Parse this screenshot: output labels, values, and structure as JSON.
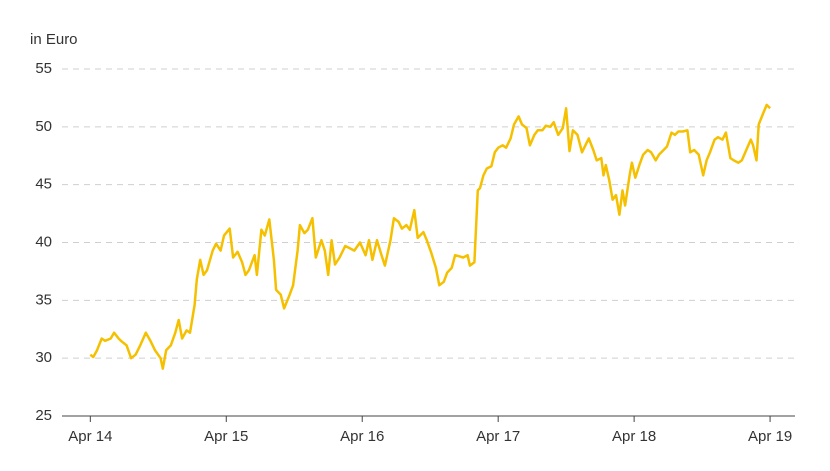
{
  "chart_data": {
    "type": "line",
    "y_label": "in Euro",
    "x": [
      0,
      0.26,
      0.6,
      1.0,
      1.3,
      1.8,
      2.1,
      2.5,
      2.7,
      3.2,
      3.6,
      4.0,
      4.4,
      4.9,
      5.3,
      5.7,
      6.2,
      6.4,
      6.7,
      7.1,
      7.5,
      7.8,
      8.1,
      8.5,
      8.8,
      9.2,
      9.4,
      9.7,
      10.0,
      10.3,
      10.8,
      11.1,
      11.5,
      11.8,
      12.3,
      12.6,
      13.0,
      13.4,
      13.7,
      14.0,
      14.5,
      14.7,
      15.1,
      15.4,
      15.8,
      16.2,
      16.4,
      16.8,
      17.1,
      17.6,
      17.9,
      18.3,
      18.5,
      18.9,
      19.2,
      19.6,
      19.9,
      20.4,
      20.7,
      21.0,
      21.3,
      21.6,
      22.0,
      22.5,
      22.9,
      23.3,
      23.8,
      24.3,
      24.6,
      24.9,
      25.3,
      25.7,
      26.0,
      26.5,
      26.8,
      27.2,
      27.5,
      27.9,
      28.2,
      28.6,
      28.9,
      29.4,
      29.7,
      30.1,
      30.5,
      30.8,
      31.2,
      31.5,
      31.9,
      32.2,
      32.6,
      32.9,
      33.3,
      33.5,
      33.9,
      34.2,
      34.4,
      34.7,
      35.0,
      35.4,
      35.7,
      36.0,
      36.4,
      36.7,
      37.1,
      37.4,
      37.8,
      38.1,
      38.5,
      38.8,
      39.2,
      39.5,
      39.9,
      40.2,
      40.6,
      40.9,
      41.3,
      41.7,
      42.0,
      42.3,
      42.6,
      43.0,
      43.4,
      43.7,
      44.0,
      44.4,
      44.7,
      45.1,
      45.3,
      45.5,
      45.8,
      46.1,
      46.4,
      46.7,
      46.97,
      47.2,
      47.6,
      47.8,
      48.1,
      48.5,
      48.8,
      49.2,
      49.5,
      49.9,
      50.2,
      50.6,
      50.9,
      51.3,
      51.6,
      51.9,
      52.3,
      52.7,
      52.95,
      53.3,
      53.7,
      54.1,
      54.4,
      54.7,
      55.1,
      55.4,
      55.8,
      56.1,
      56.5,
      56.8,
      57.2,
      57.5,
      57.9,
      58.3,
      58.5,
      58.8,
      59.0,
      59.4,
      59.7,
      60.0
    ],
    "series": [
      {
        "color": "#f5c000",
        "values": [
          30.3,
          30.1,
          30.7,
          31.7,
          31.5,
          31.7,
          32.2,
          31.7,
          31.5,
          31.1,
          30.0,
          30.3,
          31.1,
          32.2,
          31.5,
          30.7,
          30.0,
          29.1,
          30.7,
          31.1,
          32.2,
          33.3,
          31.7,
          32.4,
          32.2,
          34.6,
          36.8,
          38.5,
          37.2,
          37.6,
          39.3,
          39.9,
          39.3,
          40.6,
          41.2,
          38.7,
          39.2,
          38.3,
          37.2,
          37.6,
          38.9,
          37.2,
          41.1,
          40.6,
          42.0,
          38.5,
          35.9,
          35.5,
          34.3,
          35.5,
          36.3,
          39.3,
          41.5,
          40.8,
          41.1,
          42.1,
          38.7,
          40.2,
          39.3,
          37.2,
          40.2,
          38.1,
          38.7,
          39.7,
          39.5,
          39.3,
          40.0,
          38.9,
          40.2,
          38.5,
          40.2,
          38.9,
          38.0,
          40.2,
          42.1,
          41.8,
          41.2,
          41.5,
          41.1,
          42.8,
          40.4,
          40.9,
          40.2,
          39.1,
          37.8,
          36.3,
          36.6,
          37.4,
          37.8,
          38.9,
          38.8,
          38.7,
          38.9,
          38.0,
          38.3,
          44.5,
          44.7,
          45.8,
          46.4,
          46.6,
          47.8,
          48.2,
          48.4,
          48.2,
          49.0,
          50.2,
          50.9,
          50.2,
          49.9,
          48.4,
          49.3,
          49.7,
          49.7,
          50.1,
          50.0,
          50.4,
          49.3,
          49.9,
          51.6,
          47.9,
          49.7,
          49.3,
          47.8,
          48.4,
          49.0,
          48.0,
          47.1,
          47.3,
          45.8,
          46.7,
          45.4,
          43.7,
          44.1,
          42.4,
          44.5,
          43.2,
          45.8,
          46.9,
          45.6,
          46.8,
          47.6,
          48.0,
          47.8,
          47.1,
          47.6,
          48.0,
          48.3,
          49.5,
          49.3,
          49.6,
          49.6,
          49.7,
          47.8,
          48.0,
          47.6,
          45.8,
          47.1,
          47.8,
          48.9,
          49.1,
          48.9,
          49.5,
          47.3,
          47.1,
          46.9,
          47.1,
          48.0,
          48.9,
          48.4,
          47.1,
          50.2,
          51.2,
          51.9,
          51.6
        ]
      }
    ],
    "xlim": [
      -2.5,
      62.2
    ],
    "xticks": [
      {
        "value": 0,
        "label": "Apr 14"
      },
      {
        "value": 12,
        "label": "Apr 15"
      },
      {
        "value": 24,
        "label": "Apr 16"
      },
      {
        "value": 36,
        "label": "Apr 17"
      },
      {
        "value": 48,
        "label": "Apr 18"
      },
      {
        "value": 60,
        "label": "Apr 19"
      }
    ],
    "ylim": [
      25,
      55
    ],
    "yticks": [
      25,
      30,
      35,
      40,
      45,
      50,
      55
    ],
    "grid": true
  }
}
